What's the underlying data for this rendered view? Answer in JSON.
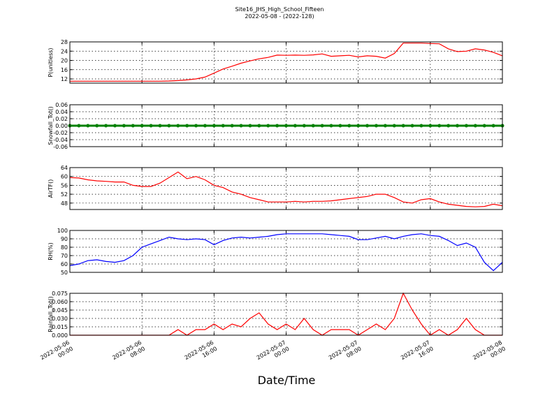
{
  "figure": {
    "title": "Site16_JHS_High_School_Fifteen",
    "subtitle": "2022-05-08 - (2022-128)",
    "xlabel": "Date/Time",
    "x": [
      "2022-05-06 00:00",
      "2022-05-06 01:00",
      "2022-05-06 02:00",
      "2022-05-06 03:00",
      "2022-05-06 04:00",
      "2022-05-06 05:00",
      "2022-05-06 06:00",
      "2022-05-06 07:00",
      "2022-05-06 08:00",
      "2022-05-06 09:00",
      "2022-05-06 10:00",
      "2022-05-06 11:00",
      "2022-05-06 12:00",
      "2022-05-06 13:00",
      "2022-05-06 14:00",
      "2022-05-06 15:00",
      "2022-05-06 16:00",
      "2022-05-06 17:00",
      "2022-05-06 18:00",
      "2022-05-06 19:00",
      "2022-05-06 20:00",
      "2022-05-06 21:00",
      "2022-05-06 22:00",
      "2022-05-06 23:00",
      "2022-05-07 00:00",
      "2022-05-07 01:00",
      "2022-05-07 02:00",
      "2022-05-07 03:00",
      "2022-05-07 04:00",
      "2022-05-07 05:00",
      "2022-05-07 06:00",
      "2022-05-07 07:00",
      "2022-05-07 08:00",
      "2022-05-07 09:00",
      "2022-05-07 10:00",
      "2022-05-07 11:00",
      "2022-05-07 12:00",
      "2022-05-07 13:00",
      "2022-05-07 14:00",
      "2022-05-07 15:00",
      "2022-05-07 16:00",
      "2022-05-07 17:00",
      "2022-05-07 18:00",
      "2022-05-07 19:00",
      "2022-05-07 20:00",
      "2022-05-07 21:00",
      "2022-05-07 22:00",
      "2022-05-07 23:00",
      "2022-05-08 00:00"
    ],
    "xlim": [
      "2022-05-06 00:00",
      "2022-05-08 00:00"
    ],
    "xticks": [
      "2022-05-06 00:00",
      "2022-05-06 08:00",
      "2022-05-06 16:00",
      "2022-05-07 00:00",
      "2022-05-07 08:00",
      "2022-05-07 16:00",
      "2022-05-08 00:00"
    ],
    "grid": true
  },
  "chart_data": [
    {
      "type": "line",
      "ylabel": "P(unitless)",
      "color": "#ff0000",
      "ylim": [
        10.2,
        28
      ],
      "yticks": [
        12,
        16,
        20,
        24,
        28
      ],
      "values": [
        11,
        11,
        11,
        11,
        11,
        11,
        11,
        11,
        11,
        11,
        11,
        11.1,
        11.3,
        11.6,
        12,
        12.8,
        14.5,
        16.3,
        17.5,
        18.8,
        19.8,
        20.7,
        21.3,
        22.3,
        22.2,
        22.3,
        22.2,
        22.4,
        22.8,
        21.8,
        22,
        22.2,
        21.5,
        22,
        21.8,
        21,
        23,
        27.5,
        27.5,
        27.5,
        27.3,
        27.2,
        25,
        23.8,
        24,
        25,
        24.5,
        23.5,
        22
      ]
    },
    {
      "type": "line",
      "ylabel": "Snowfall_Tot()",
      "color": "#008000",
      "marker": true,
      "ylim": [
        -0.06,
        0.06
      ],
      "yticks": [
        -0.06,
        -0.04,
        -0.02,
        {
          "value": 0,
          "label": "0.00"
        },
        0.02,
        0.04,
        0.06
      ],
      "values": [
        0,
        0,
        0,
        0,
        0,
        0,
        0,
        0,
        0,
        0,
        0,
        0,
        0,
        0,
        0,
        0,
        0,
        0,
        0,
        0,
        0,
        0,
        0,
        0,
        0,
        0,
        0,
        0,
        0,
        0,
        0,
        0,
        0,
        0,
        0,
        0,
        0,
        0,
        0,
        0,
        0,
        0,
        0,
        0,
        0,
        0,
        0,
        0,
        0
      ]
    },
    {
      "type": "line",
      "ylabel": "AirTF()",
      "color": "#ff0000",
      "ylim": [
        45.1,
        64
      ],
      "yticks": [
        48,
        52,
        56,
        60,
        64
      ],
      "values": [
        59.5,
        59.3,
        58.5,
        58,
        57.8,
        57.5,
        57.5,
        56,
        55.5,
        55.5,
        57,
        59.5,
        62,
        59,
        60,
        58.5,
        56,
        55,
        53,
        52,
        50.5,
        49.5,
        48.5,
        48.5,
        48.5,
        48.8,
        48.5,
        48.8,
        48.8,
        49,
        49.5,
        50,
        50.5,
        51,
        52,
        52,
        50.5,
        48.5,
        48,
        49.5,
        50,
        48.5,
        47.5,
        47,
        46.5,
        46.3,
        46.5,
        47.5,
        46.8
      ]
    },
    {
      "type": "line",
      "ylabel": "RH(%)",
      "color": "#0000ff",
      "ylim": [
        50,
        100
      ],
      "yticks": [
        50,
        60,
        70,
        80,
        90,
        100
      ],
      "values": [
        58,
        60,
        64,
        65,
        63,
        62,
        64,
        70,
        80,
        84,
        88,
        92,
        90,
        89,
        90,
        89,
        83,
        88,
        91,
        92,
        91,
        92,
        93,
        95,
        96,
        96,
        96,
        96,
        96,
        95,
        94,
        93,
        89,
        89,
        91,
        93,
        90,
        93,
        95,
        96,
        94,
        93,
        88,
        82,
        85,
        80,
        62,
        52,
        62
      ]
    },
    {
      "type": "line",
      "ylabel": "Rainfall_Tot()",
      "color": "#ff0000",
      "ylim": [
        0,
        0.075
      ],
      "yticks": [
        {
          "value": 0,
          "label": "0.000"
        },
        0.015,
        {
          "value": 0.03,
          "label": "0.030"
        },
        0.045,
        {
          "value": 0.06,
          "label": "0.060"
        },
        0.075
      ],
      "values": [
        0,
        0,
        0,
        0,
        0,
        0,
        0,
        0,
        0,
        0,
        0,
        0,
        0.01,
        0,
        0.01,
        0.01,
        0.02,
        0.01,
        0.02,
        0.015,
        0.03,
        0.04,
        0.02,
        0.01,
        0.02,
        0.01,
        0.03,
        0.01,
        0,
        0.01,
        0.01,
        0.01,
        0,
        0.01,
        0.02,
        0.01,
        0.03,
        0.075,
        0.045,
        0.02,
        0,
        0.01,
        0,
        0.01,
        0.03,
        0.01,
        0,
        0,
        0
      ]
    }
  ]
}
